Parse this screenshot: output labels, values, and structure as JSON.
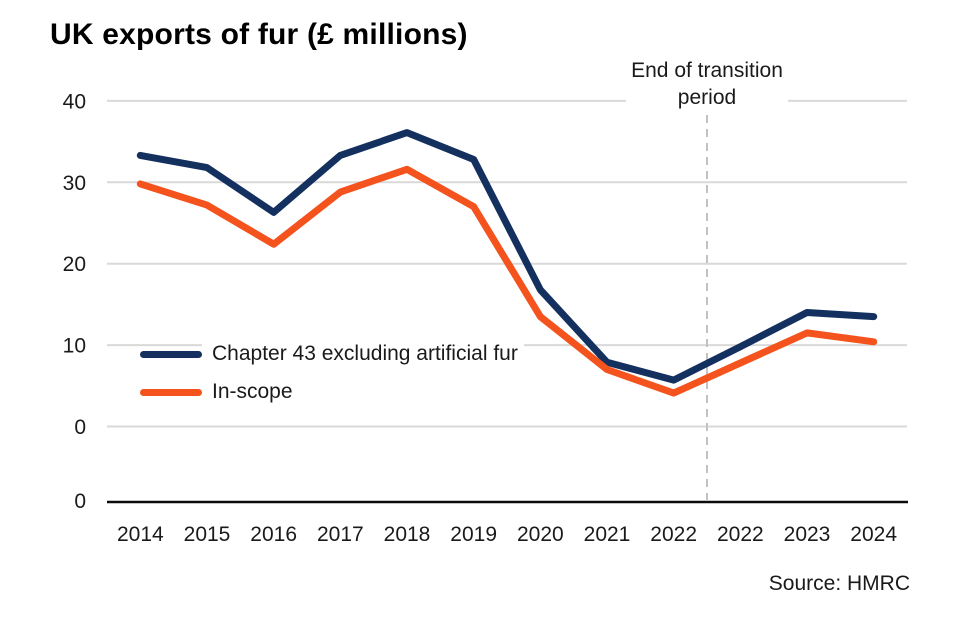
{
  "title": "UK exports of fur (£ millions)",
  "source": "Source: HMRC",
  "annotation": {
    "line1": "End of transition",
    "line2": "period"
  },
  "colors": {
    "navy": "#13305F",
    "orange": "#F4531E",
    "gridline": "#d9d9d9",
    "axis": "#0b0c0c",
    "dashed": "#c2c2c2",
    "text": "#1a1a1a"
  },
  "chart_data": {
    "type": "line",
    "title": "UK exports of fur (£ millions)",
    "xlabel": "",
    "ylabel": "",
    "ylim": [
      0,
      40
    ],
    "yticks": [
      40,
      30,
      20,
      10,
      0
    ],
    "extra_bottom_ytick": "0",
    "grid": "horizontal",
    "legend_position": "inside-left",
    "categories": [
      "2014",
      "2015",
      "2016",
      "2017",
      "2018",
      "2019",
      "2020",
      "2021",
      "2022",
      "2022",
      "2023",
      "2024"
    ],
    "series": [
      {
        "name": "Chapter 43 excluding artificial fur",
        "color": "#13305F",
        "values": [
          33.3,
          31.8,
          26.3,
          33.3,
          36.1,
          32.8,
          16.8,
          7.9,
          5.7,
          9.8,
          14.0,
          13.5
        ]
      },
      {
        "name": "In-scope",
        "color": "#F4531E",
        "values": [
          29.8,
          27.2,
          22.4,
          28.8,
          31.6,
          27.0,
          13.5,
          7.0,
          4.1,
          7.8,
          11.5,
          10.4
        ]
      }
    ],
    "transition_line": {
      "after_category_index": 8,
      "label": "End of transition period",
      "style": "dashed"
    }
  }
}
